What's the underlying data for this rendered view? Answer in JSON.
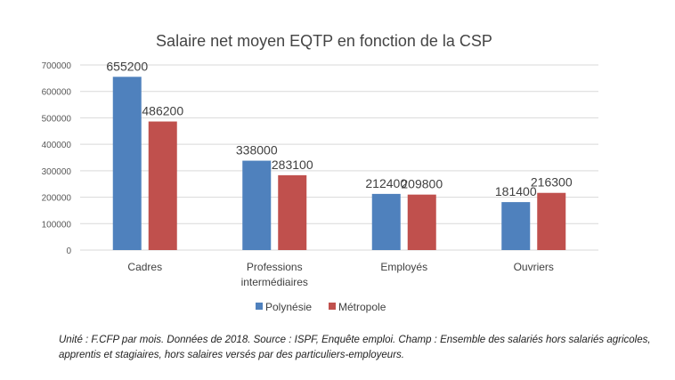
{
  "chart_data": {
    "type": "bar",
    "title": "Salaire net moyen EQTP en fonction de la CSP",
    "categories": [
      "Cadres",
      "Professions intermédiaires",
      "Employés",
      "Ouvriers"
    ],
    "category_lines": [
      [
        "Cadres"
      ],
      [
        "Professions",
        "intermédiaires"
      ],
      [
        "Employés"
      ],
      [
        "Ouvriers"
      ]
    ],
    "series": [
      {
        "name": "Polynésie",
        "color": "#4f81bd",
        "values": [
          655200,
          338000,
          212400,
          181400
        ]
      },
      {
        "name": "Métropole",
        "color": "#c0504d",
        "values": [
          486200,
          283100,
          209800,
          216300
        ]
      }
    ],
    "ylim": [
      0,
      700000
    ],
    "yticks": [
      0,
      100000,
      200000,
      300000,
      400000,
      500000,
      600000,
      700000
    ],
    "grid": true,
    "legend": "bottom",
    "xlabel": "",
    "ylabel": ""
  },
  "note": "Unité : F.CFP par mois. Données de 2018. Source : ISPF, Enquête emploi. Champ : Ensemble des salariés hors salariés agricoles, apprentis et stagiaires, hors salaires versés par des particuliers-employeurs."
}
